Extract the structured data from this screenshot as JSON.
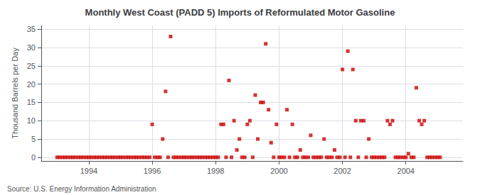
{
  "chart_data": {
    "type": "scatter",
    "title": "Monthly West Coast (PADD 5) Imports of Reformulated Motor Gasoline",
    "ylabel": "Thousand Barrels per Day",
    "annotations": [
      "Source: U.S. Energy Information Administration"
    ],
    "color": "#CC0000",
    "marker": "square",
    "grid": true,
    "xlim": [
      1992.5,
      2005.8
    ],
    "ylim": [
      -1,
      36
    ],
    "xticks": [
      1994,
      1996,
      1998,
      2000,
      2002,
      2004
    ],
    "yticks": [
      0,
      5,
      10,
      15,
      20,
      25,
      30,
      35
    ],
    "x": [
      1993.0,
      1993.08,
      1993.17,
      1993.25,
      1993.33,
      1993.42,
      1993.5,
      1993.58,
      1993.67,
      1993.75,
      1993.83,
      1993.92,
      1994.0,
      1994.08,
      1994.17,
      1994.25,
      1994.33,
      1994.42,
      1994.5,
      1994.58,
      1994.67,
      1994.75,
      1994.83,
      1994.92,
      1995.0,
      1995.08,
      1995.17,
      1995.25,
      1995.33,
      1995.42,
      1995.5,
      1995.58,
      1995.67,
      1995.75,
      1995.83,
      1995.92,
      1996.0,
      1996.08,
      1996.17,
      1996.25,
      1996.33,
      1996.42,
      1996.5,
      1996.58,
      1996.67,
      1996.75,
      1996.83,
      1996.92,
      1997.0,
      1997.08,
      1997.17,
      1997.25,
      1997.33,
      1997.42,
      1997.5,
      1997.58,
      1997.67,
      1997.75,
      1997.83,
      1997.92,
      1998.0,
      1998.08,
      1998.17,
      1998.25,
      1998.33,
      1998.42,
      1998.5,
      1998.58,
      1998.67,
      1998.75,
      1998.83,
      1998.92,
      1999.0,
      1999.08,
      1999.17,
      1999.25,
      1999.33,
      1999.42,
      1999.5,
      1999.58,
      1999.67,
      1999.75,
      1999.83,
      1999.92,
      2000.0,
      2000.08,
      2000.17,
      2000.25,
      2000.33,
      2000.42,
      2000.5,
      2000.58,
      2000.67,
      2000.75,
      2000.83,
      2000.92,
      2001.0,
      2001.08,
      2001.17,
      2001.25,
      2001.33,
      2001.42,
      2001.5,
      2001.58,
      2001.67,
      2001.75,
      2001.83,
      2001.92,
      2002.0,
      2002.08,
      2002.17,
      2002.25,
      2002.33,
      2002.42,
      2002.5,
      2002.58,
      2002.67,
      2002.75,
      2002.83,
      2002.92,
      2003.0,
      2003.08,
      2003.17,
      2003.25,
      2003.33,
      2003.42,
      2003.5,
      2003.58,
      2003.67,
      2003.75,
      2003.83,
      2003.92,
      2004.0,
      2004.08,
      2004.17,
      2004.25,
      2004.33,
      2004.42,
      2004.5,
      2004.58,
      2004.67,
      2004.75,
      2004.83,
      2004.92,
      2005.0,
      2005.08
    ],
    "values": [
      0,
      0,
      0,
      0,
      0,
      0,
      0,
      0,
      0,
      0,
      0,
      0,
      0,
      0,
      0,
      0,
      0,
      0,
      0,
      0,
      0,
      0,
      0,
      0,
      0,
      0,
      0,
      0,
      0,
      0,
      0,
      0,
      0,
      0,
      0,
      0,
      9,
      0,
      0,
      0,
      5,
      18,
      0,
      33,
      0,
      0,
      0,
      0,
      0,
      0,
      0,
      0,
      0,
      0,
      0,
      0,
      0,
      0,
      0,
      0,
      0,
      0,
      9,
      9,
      0,
      21,
      0,
      10,
      2,
      5,
      0,
      0,
      9,
      10,
      0,
      17,
      5,
      15,
      15,
      31,
      13,
      4,
      0,
      9,
      0,
      0,
      0,
      13,
      0,
      9,
      0,
      0,
      2,
      0,
      0,
      0,
      6,
      0,
      0,
      0,
      0,
      5,
      0,
      0,
      0,
      2,
      0,
      0,
      24,
      0,
      29,
      0,
      24,
      10,
      0,
      10,
      10,
      0,
      5,
      0,
      0,
      0,
      0,
      0,
      0,
      10,
      9,
      10,
      0,
      0,
      0,
      0,
      0,
      1,
      0,
      0,
      19,
      10,
      9,
      10,
      0,
      0,
      0,
      0,
      0,
      0
    ]
  }
}
